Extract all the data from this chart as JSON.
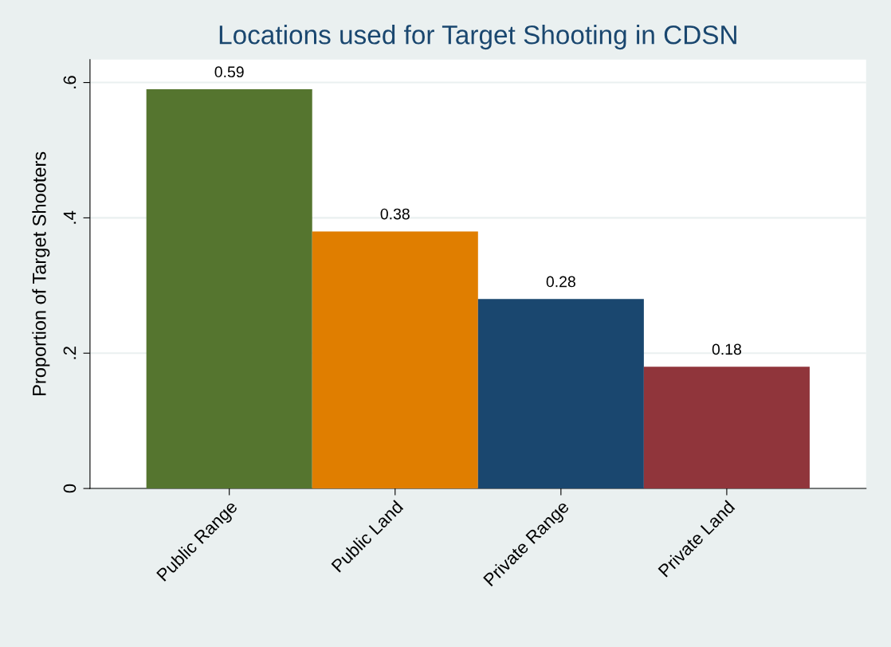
{
  "chart_data": {
    "type": "bar",
    "title": "Locations used for Target Shooting in CDSN",
    "ylabel": "Proportion of Target Shooters",
    "categories": [
      "Public Range",
      "Public Land",
      "Private Range",
      "Private Land"
    ],
    "values": [
      0.59,
      0.38,
      0.28,
      0.18
    ],
    "colors": [
      "#55752f",
      "#e07e00",
      "#1a476f",
      "#90353b"
    ],
    "ylim": [
      0,
      0.634
    ],
    "yticks": [
      {
        "value": 0,
        "label": "0"
      },
      {
        "value": 0.2,
        "label": ".2"
      },
      {
        "value": 0.4,
        "label": ".4"
      },
      {
        "value": 0.6,
        "label": ".6"
      }
    ],
    "grid": "y",
    "data_labels": true,
    "legend": false
  }
}
